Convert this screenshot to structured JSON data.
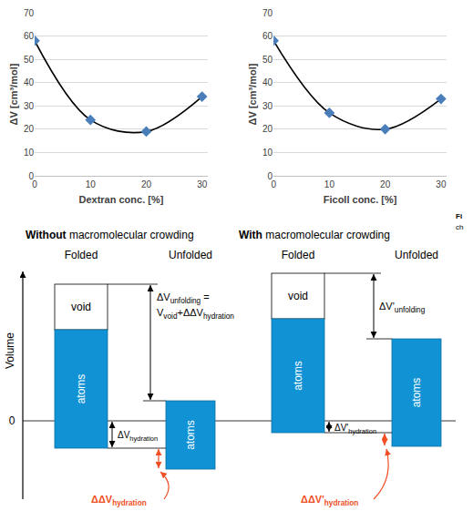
{
  "chart_data": [
    {
      "type": "line",
      "x_label": "Dextran conc. [%]",
      "y_label": "ΔV [cm³/mol]",
      "x": [
        0,
        10,
        20,
        30
      ],
      "series": [
        {
          "color": "#4a7ebb",
          "values": [
            58,
            24,
            19,
            34
          ],
          "marker": "diamond",
          "line_style": "smooth"
        }
      ],
      "xlim": [
        0,
        31
      ],
      "xticks": [
        0,
        10,
        20,
        30
      ],
      "ylim": [
        0,
        70
      ],
      "yticks": [
        0,
        10,
        20,
        30,
        40,
        50,
        60,
        70
      ],
      "grid": true
    },
    {
      "type": "line",
      "x_label": "Ficoll conc. [%]",
      "y_label": "ΔV [cm³/mol]",
      "x": [
        0,
        10,
        20,
        30
      ],
      "series": [
        {
          "color": "#4a7ebb",
          "values": [
            58,
            27,
            20,
            33
          ],
          "marker": "diamond",
          "line_style": "smooth"
        }
      ],
      "xlim": [
        0,
        31
      ],
      "xticks": [
        0,
        10,
        20,
        30
      ],
      "ylim": [
        0,
        70
      ],
      "yticks": [
        0,
        10,
        20,
        30,
        40,
        50,
        60,
        70
      ],
      "grid": true
    }
  ],
  "diagram": {
    "y_axis_label": "Volume",
    "zero_label": "0",
    "caption_fragments": [
      "Fi",
      "ch"
    ],
    "panels": [
      {
        "title": [
          {
            "t": "Without",
            "bold": true
          },
          {
            "t": " macromolecular crowding"
          }
        ],
        "folded_label": "Folded",
        "unfolded_label": "Unfolded",
        "void_label": "void",
        "atoms_label": "atoms",
        "unfolding_label": [
          [
            {
              "t": "ΔV"
            },
            {
              "t": "unfolding",
              "sub": true
            },
            {
              "t": " ="
            }
          ],
          [
            {
              "t": "V"
            },
            {
              "t": "void",
              "sub": true
            },
            {
              "t": "+ΔΔV"
            },
            {
              "t": "hydration",
              "sub": true
            }
          ]
        ],
        "hydration_label": [
          {
            "t": "ΔV"
          },
          {
            "t": "hydration",
            "sub": true
          }
        ],
        "delta_hydration_label": [
          {
            "t": "ΔΔV"
          },
          {
            "t": "hydration",
            "sub": true
          }
        ]
      },
      {
        "title": [
          {
            "t": "With",
            "bold": true
          },
          {
            "t": " macromolecular crowding"
          }
        ],
        "folded_label": "Folded",
        "unfolded_label": "Unfolded",
        "void_label": "void",
        "atoms_label": "atoms",
        "unfolding_label": [
          [
            {
              "t": "ΔV'"
            },
            {
              "t": "unfolding",
              "sub": true
            }
          ]
        ],
        "hydration_label": [
          {
            "t": "ΔV'"
          },
          {
            "t": "hydration",
            "sub": true
          }
        ],
        "delta_hydration_label": [
          {
            "t": "ΔΔV'"
          },
          {
            "t": "hydration",
            "sub": true
          }
        ]
      }
    ]
  }
}
